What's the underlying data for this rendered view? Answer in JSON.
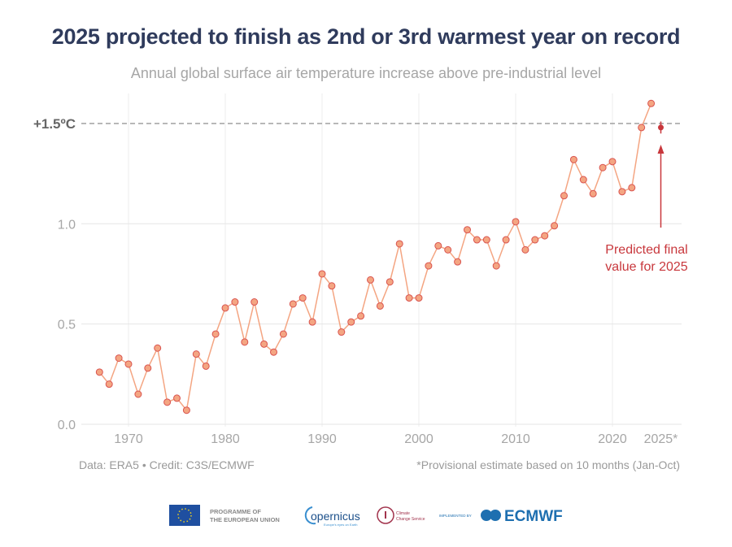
{
  "header": {
    "title": "2025 projected to finish as 2nd or 3rd warmest year on record",
    "subtitle": "Annual global surface air temperature increase above pre-industrial level"
  },
  "chart_data": {
    "type": "line",
    "title": "2025 projected to finish as 2nd or 3rd warmest year on record",
    "subtitle": "Annual global surface air temperature increase above pre-industrial level",
    "xlabel": "",
    "ylabel": "",
    "xlim": [
      1966,
      2026
    ],
    "ylim": [
      0,
      1.62
    ],
    "x_ticks": [
      "1970",
      "1980",
      "1990",
      "2000",
      "2010",
      "2020",
      "2025*"
    ],
    "x_tick_values": [
      1970,
      1980,
      1990,
      2000,
      2010,
      2020,
      2025
    ],
    "y_ticks": [
      "0.0",
      "0.5",
      "1.0",
      "+1.5ºC"
    ],
    "y_tick_values": [
      0,
      0.5,
      1.0,
      1.5
    ],
    "grid": true,
    "reference_line": {
      "value": 1.5,
      "style": "dashed",
      "label": "+1.5ºC"
    },
    "series": [
      {
        "color": "#f4a582",
        "x": [
          1967,
          1968,
          1969,
          1970,
          1971,
          1972,
          1973,
          1974,
          1975,
          1976,
          1977,
          1978,
          1979,
          1980,
          1981,
          1982,
          1983,
          1984,
          1985,
          1986,
          1987,
          1988,
          1989,
          1990,
          1991,
          1992,
          1993,
          1994,
          1995,
          1996,
          1997,
          1998,
          1999,
          2000,
          2001,
          2002,
          2003,
          2004,
          2005,
          2006,
          2007,
          2008,
          2009,
          2010,
          2011,
          2012,
          2013,
          2014,
          2015,
          2016,
          2017,
          2018,
          2019,
          2020,
          2021,
          2022,
          2023,
          2024
        ],
        "y": [
          0.26,
          0.2,
          0.33,
          0.3,
          0.15,
          0.28,
          0.38,
          0.11,
          0.13,
          0.07,
          0.35,
          0.29,
          0.45,
          0.58,
          0.61,
          0.41,
          0.61,
          0.4,
          0.36,
          0.45,
          0.6,
          0.63,
          0.51,
          0.75,
          0.69,
          0.46,
          0.51,
          0.54,
          0.72,
          0.59,
          0.71,
          0.9,
          0.63,
          0.63,
          0.79,
          0.89,
          0.87,
          0.81,
          0.97,
          0.92,
          0.92,
          0.79,
          0.92,
          1.01,
          0.87,
          0.92,
          0.94,
          0.99,
          1.14,
          1.32,
          1.22,
          1.15,
          1.28,
          1.31,
          1.16,
          1.18,
          1.48,
          1.6
        ]
      }
    ],
    "prediction": {
      "x": 2025,
      "y": 1.48,
      "low": 1.45,
      "high": 1.51,
      "color": "#c8373c",
      "label_line1": "Predicted final",
      "label_line2": "value for 2025"
    }
  },
  "footer": {
    "source": "Data: ERA5 • Credit: C3S/ECMWF",
    "note": "*Provisional estimate based on 10 months (Jan-Oct)"
  },
  "logos": {
    "eu": "PROGRAMME OF",
    "eu2": "THE EUROPEAN UNION",
    "copernicus": "opernicus",
    "copernicus_tag": "Europe's eyes on Earth",
    "c3s": "Climate",
    "c3s2": "Change Service",
    "impl": "IMPLEMENTED BY",
    "ecmwf": "ECMWF"
  }
}
